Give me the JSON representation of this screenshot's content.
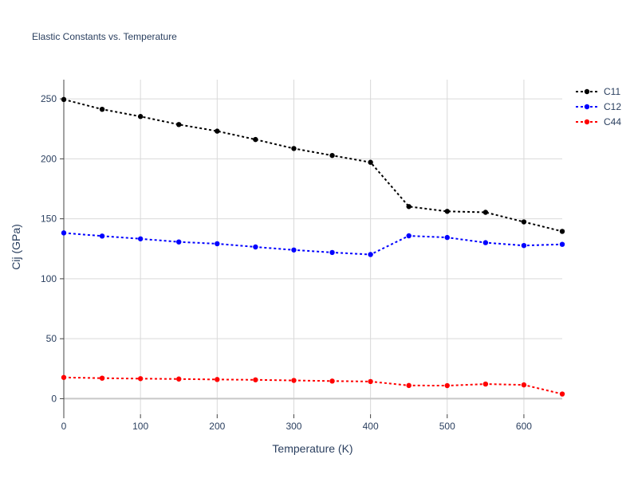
{
  "chart_data": {
    "type": "line",
    "title": "Elastic Constants vs. Temperature",
    "xlabel": "Temperature (K)",
    "ylabel": "Cij (GPa)",
    "xlim": [
      0,
      650
    ],
    "ylim": [
      -13,
      266
    ],
    "xticks": [
      0,
      100,
      200,
      300,
      400,
      500,
      600
    ],
    "yticks": [
      0,
      50,
      100,
      150,
      200,
      250
    ],
    "grid": true,
    "legend_position": "top-right",
    "x": [
      0,
      50,
      100,
      150,
      200,
      250,
      300,
      350,
      400,
      450,
      500,
      550,
      600,
      650
    ],
    "series": [
      {
        "name": "C11",
        "color": "#000000",
        "values": [
          249.5,
          241.3,
          235.3,
          228.6,
          223.1,
          216.1,
          208.6,
          202.8,
          197.1,
          160.2,
          156.2,
          155.4,
          147.4,
          139.5
        ]
      },
      {
        "name": "C12",
        "color": "#0000ff",
        "values": [
          138.2,
          135.6,
          133.3,
          130.7,
          129.2,
          126.5,
          124.0,
          121.9,
          120.2,
          135.8,
          134.4,
          130.1,
          127.7,
          128.7
        ]
      },
      {
        "name": "C44",
        "color": "#ff0000",
        "values": [
          17.7,
          17.1,
          16.7,
          16.4,
          16.0,
          15.7,
          15.2,
          14.7,
          14.3,
          11.0,
          10.9,
          12.2,
          11.5,
          3.9
        ]
      }
    ]
  }
}
